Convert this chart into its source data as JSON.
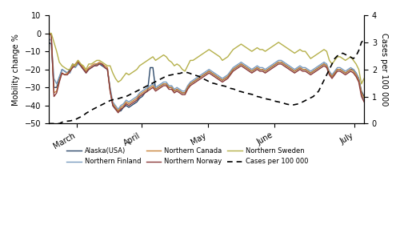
{
  "ylabel_left": "Mobility change %",
  "ylabel_right": "Cases per 100 000",
  "ylim_left": [
    -50,
    10
  ],
  "ylim_right": [
    0,
    4
  ],
  "yticks_left": [
    -50,
    -40,
    -30,
    -20,
    -10,
    0,
    10
  ],
  "yticks_right": [
    0,
    1,
    2,
    3,
    4
  ],
  "xtick_labels": [
    "March",
    "April",
    "May",
    "June",
    "July"
  ],
  "xtick_positions": [
    0.09,
    0.295,
    0.505,
    0.715,
    0.97
  ],
  "colors": {
    "alaska": "#2e4a6b",
    "n_finland": "#7a9cbf",
    "n_canada": "#c8843a",
    "n_norway": "#8b3a3a",
    "n_sweden": "#b5b04a",
    "cases": "#000000"
  },
  "alaska": [
    -5,
    -6,
    -30,
    -30,
    -25,
    -20,
    -21,
    -22,
    -20,
    -17,
    -18,
    -16,
    -18,
    -20,
    -21,
    -20,
    -19,
    -18,
    -17,
    -17,
    -18,
    -19,
    -20,
    -31,
    -40,
    -42,
    -43,
    -43,
    -41,
    -40,
    -41,
    -40,
    -39,
    -38,
    -36,
    -35,
    -33,
    -32,
    -19,
    -19,
    -31,
    -30,
    -29,
    -28,
    -28,
    -30,
    -30,
    -32,
    -31,
    -32,
    -33,
    -33,
    -30,
    -28,
    -27,
    -26,
    -25,
    -24,
    -23,
    -22,
    -21,
    -22,
    -23,
    -24,
    -25,
    -26,
    -25,
    -24,
    -22,
    -20,
    -19,
    -18,
    -17,
    -18,
    -19,
    -20,
    -21,
    -20,
    -19,
    -20,
    -20,
    -21,
    -20,
    -19,
    -18,
    -17,
    -16,
    -16,
    -17,
    -18,
    -19,
    -20,
    -21,
    -20,
    -19,
    -20,
    -20,
    -21,
    -22,
    -21,
    -20,
    -19,
    -18,
    -17,
    -18,
    -22,
    -24,
    -22,
    -20,
    -20,
    -21,
    -22,
    -21,
    -20,
    -20,
    -22,
    -25,
    -32,
    -35
  ],
  "n_finland": [
    -3,
    -4,
    -25,
    -28,
    -24,
    -20,
    -21,
    -22,
    -22,
    -18,
    -19,
    -17,
    -18,
    -20,
    -22,
    -20,
    -19,
    -18,
    -18,
    -17,
    -17,
    -19,
    -20,
    -30,
    -38,
    -40,
    -42,
    -40,
    -39,
    -37,
    -38,
    -37,
    -36,
    -35,
    -33,
    -32,
    -31,
    -30,
    -29,
    -28,
    -30,
    -29,
    -28,
    -27,
    -27,
    -29,
    -29,
    -31,
    -30,
    -31,
    -32,
    -32,
    -29,
    -27,
    -26,
    -25,
    -24,
    -23,
    -22,
    -21,
    -20,
    -21,
    -22,
    -23,
    -24,
    -25,
    -24,
    -23,
    -21,
    -19,
    -18,
    -17,
    -16,
    -17,
    -18,
    -19,
    -20,
    -19,
    -18,
    -19,
    -19,
    -20,
    -19,
    -18,
    -17,
    -16,
    -15,
    -15,
    -16,
    -17,
    -18,
    -19,
    -20,
    -19,
    -18,
    -19,
    -19,
    -20,
    -21,
    -20,
    -19,
    -18,
    -17,
    -16,
    -17,
    -21,
    -23,
    -21,
    -19,
    -19,
    -20,
    -21,
    -20,
    -19,
    -20,
    -22,
    -25,
    -34,
    -37
  ],
  "n_canada": [
    0,
    -1,
    -33,
    -32,
    -26,
    -22,
    -23,
    -22,
    -21,
    -18,
    -17,
    -15,
    -17,
    -19,
    -21,
    -19,
    -18,
    -17,
    -17,
    -16,
    -17,
    -18,
    -19,
    -32,
    -39,
    -41,
    -43,
    -41,
    -40,
    -38,
    -39,
    -38,
    -37,
    -36,
    -34,
    -33,
    -32,
    -31,
    -30,
    -29,
    -31,
    -30,
    -29,
    -28,
    -28,
    -30,
    -30,
    -32,
    -31,
    -32,
    -33,
    -33,
    -30,
    -28,
    -27,
    -26,
    -25,
    -24,
    -23,
    -22,
    -21,
    -22,
    -23,
    -24,
    -25,
    -26,
    -25,
    -24,
    -22,
    -20,
    -19,
    -18,
    -17,
    -18,
    -19,
    -20,
    -21,
    -20,
    -19,
    -20,
    -20,
    -21,
    -20,
    -19,
    -18,
    -17,
    -16,
    -16,
    -17,
    -18,
    -19,
    -20,
    -21,
    -20,
    -19,
    -20,
    -20,
    -21,
    -22,
    -21,
    -20,
    -19,
    -18,
    -17,
    -18,
    -22,
    -24,
    -22,
    -20,
    -20,
    -21,
    -22,
    -21,
    -20,
    -21,
    -23,
    -26,
    -33,
    -36
  ],
  "n_norway": [
    0,
    -1,
    -35,
    -33,
    -27,
    -22,
    -23,
    -23,
    -21,
    -19,
    -18,
    -16,
    -18,
    -20,
    -22,
    -20,
    -19,
    -18,
    -18,
    -17,
    -17,
    -19,
    -20,
    -32,
    -40,
    -42,
    -44,
    -42,
    -41,
    -39,
    -40,
    -39,
    -38,
    -37,
    -35,
    -34,
    -33,
    -32,
    -31,
    -30,
    -32,
    -31,
    -30,
    -29,
    -29,
    -31,
    -31,
    -33,
    -32,
    -33,
    -34,
    -34,
    -31,
    -29,
    -28,
    -27,
    -26,
    -25,
    -24,
    -23,
    -22,
    -23,
    -24,
    -25,
    -26,
    -27,
    -26,
    -25,
    -23,
    -21,
    -20,
    -19,
    -18,
    -19,
    -20,
    -21,
    -22,
    -21,
    -20,
    -21,
    -21,
    -22,
    -21,
    -20,
    -19,
    -18,
    -17,
    -17,
    -18,
    -19,
    -20,
    -21,
    -22,
    -21,
    -20,
    -21,
    -21,
    -22,
    -23,
    -22,
    -21,
    -20,
    -19,
    -18,
    -19,
    -23,
    -25,
    -23,
    -21,
    -21,
    -22,
    -23,
    -22,
    -21,
    -22,
    -24,
    -27,
    -35,
    -38
  ],
  "n_sweden": [
    0,
    0,
    -5,
    -10,
    -16,
    -18,
    -19,
    -20,
    -20,
    -17,
    -18,
    -15,
    -17,
    -18,
    -20,
    -17,
    -17,
    -16,
    -15,
    -15,
    -16,
    -17,
    -18,
    -18,
    -22,
    -25,
    -27,
    -26,
    -24,
    -22,
    -23,
    -22,
    -21,
    -20,
    -18,
    -17,
    -16,
    -15,
    -14,
    -13,
    -15,
    -14,
    -13,
    -12,
    -13,
    -15,
    -16,
    -18,
    -17,
    -18,
    -20,
    -21,
    -18,
    -15,
    -15,
    -14,
    -13,
    -12,
    -11,
    -10,
    -9,
    -10,
    -11,
    -12,
    -13,
    -15,
    -14,
    -13,
    -11,
    -9,
    -8,
    -7,
    -6,
    -7,
    -8,
    -9,
    -10,
    -9,
    -8,
    -9,
    -9,
    -10,
    -9,
    -8,
    -7,
    -6,
    -5,
    -6,
    -7,
    -8,
    -9,
    -10,
    -11,
    -10,
    -9,
    -10,
    -10,
    -12,
    -14,
    -13,
    -12,
    -11,
    -10,
    -9,
    -10,
    -15,
    -17,
    -15,
    -13,
    -13,
    -14,
    -15,
    -14,
    -13,
    -15,
    -17,
    -20,
    -28,
    -25
  ],
  "cases": [
    0.0,
    0.0,
    0.0,
    0.0,
    0.0,
    0.05,
    0.07,
    0.09,
    0.1,
    0.12,
    0.15,
    0.2,
    0.25,
    0.3,
    0.38,
    0.44,
    0.5,
    0.55,
    0.6,
    0.65,
    0.7,
    0.75,
    0.8,
    0.85,
    0.88,
    0.9,
    0.92,
    0.95,
    0.98,
    1.0,
    1.05,
    1.1,
    1.15,
    1.2,
    1.25,
    1.3,
    1.35,
    1.4,
    1.45,
    1.5,
    1.55,
    1.6,
    1.65,
    1.7,
    1.75,
    1.78,
    1.8,
    1.82,
    1.85,
    1.85,
    1.88,
    1.9,
    1.88,
    1.85,
    1.8,
    1.78,
    1.75,
    1.7,
    1.65,
    1.6,
    1.55,
    1.5,
    1.48,
    1.45,
    1.42,
    1.4,
    1.38,
    1.35,
    1.3,
    1.28,
    1.25,
    1.2,
    1.18,
    1.15,
    1.12,
    1.1,
    1.08,
    1.05,
    1.0,
    0.98,
    0.95,
    0.92,
    0.9,
    0.88,
    0.85,
    0.82,
    0.8,
    0.78,
    0.75,
    0.72,
    0.7,
    0.68,
    0.7,
    0.72,
    0.75,
    0.8,
    0.85,
    0.9,
    0.95,
    1.0,
    1.1,
    1.2,
    1.4,
    1.6,
    1.8,
    2.0,
    2.2,
    2.4,
    2.5,
    2.55,
    2.6,
    2.55,
    2.5,
    2.45,
    2.4,
    2.5,
    2.7,
    3.0,
    3.1
  ]
}
